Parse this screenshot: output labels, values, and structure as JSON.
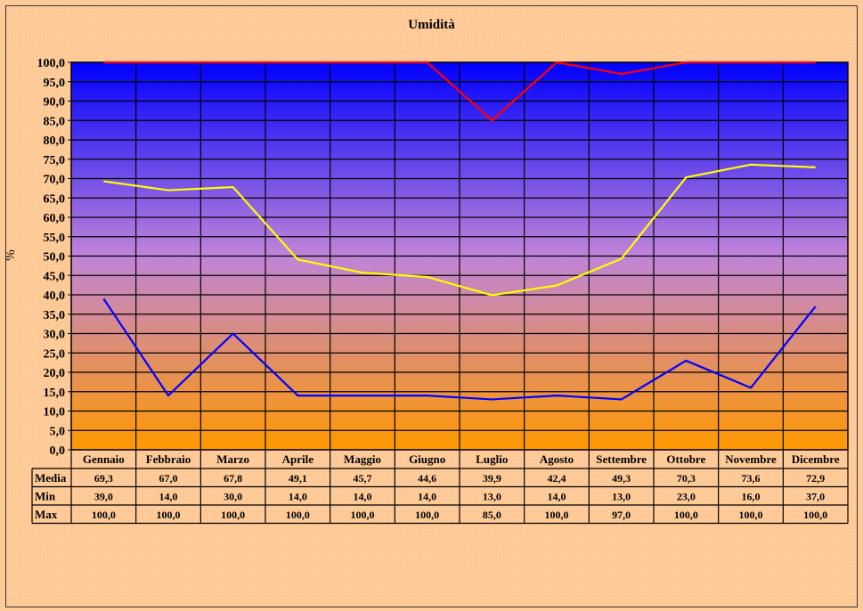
{
  "chart_data": {
    "type": "line",
    "title": "Umidità",
    "ylabel": "%",
    "ylim": [
      0,
      100
    ],
    "ytick_step": 5,
    "grid": true,
    "legend": "none",
    "categories": [
      "Gennaio",
      "Febbraio",
      "Marzo",
      "Aprile",
      "Maggio",
      "Giugno",
      "Luglio",
      "Agosto",
      "Settembre",
      "Ottobre",
      "Novembre",
      "Dicembre"
    ],
    "series": [
      {
        "name": "Media",
        "color": "#ffff00",
        "values": [
          69.3,
          67.0,
          67.8,
          49.1,
          45.7,
          44.6,
          39.9,
          42.4,
          49.3,
          70.3,
          73.6,
          72.9
        ],
        "labels": [
          "69,3",
          "67,0",
          "67,8",
          "49,1",
          "45,7",
          "44,6",
          "39,9",
          "42,4",
          "49,3",
          "70,3",
          "73,6",
          "72,9"
        ]
      },
      {
        "name": "Min",
        "color": "#0000ff",
        "values": [
          39.0,
          14.0,
          30.0,
          14.0,
          14.0,
          14.0,
          13.0,
          14.0,
          13.0,
          23.0,
          16.0,
          37.0
        ],
        "labels": [
          "39,0",
          "14,0",
          "30,0",
          "14,0",
          "14,0",
          "14,0",
          "13,0",
          "14,0",
          "13,0",
          "23,0",
          "16,0",
          "37,0"
        ]
      },
      {
        "name": "Max",
        "color": "#ff0000",
        "values": [
          100.0,
          100.0,
          100.0,
          100.0,
          100.0,
          100.0,
          85.0,
          100.0,
          97.0,
          100.0,
          100.0,
          100.0
        ],
        "labels": [
          "100,0",
          "100,0",
          "100,0",
          "100,0",
          "100,0",
          "100,0",
          "85,0",
          "100,0",
          "97,0",
          "100,0",
          "100,0",
          "100,0"
        ]
      }
    ],
    "colors": {
      "plot_top": "#0000ff",
      "plot_bottom": "#ff9900",
      "grid": "#000000"
    }
  }
}
